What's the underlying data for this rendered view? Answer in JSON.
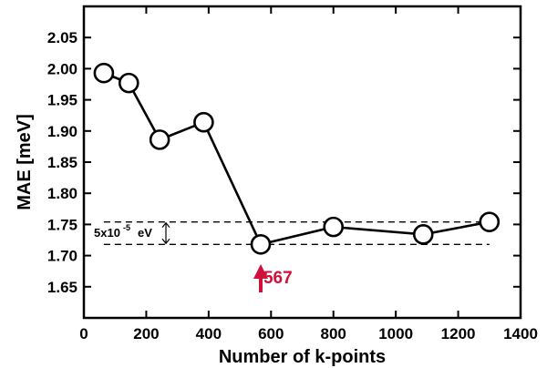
{
  "chart_data": {
    "type": "line",
    "xlabel": "Number of k-points",
    "ylabel": "MAE [meV]",
    "xlim": [
      0,
      1400
    ],
    "ylim": [
      1.6,
      2.1
    ],
    "xticks": [
      0,
      200,
      400,
      600,
      800,
      1000,
      1200,
      1400
    ],
    "yticks": [
      1.65,
      1.7,
      1.75,
      1.8,
      1.85,
      1.9,
      1.95,
      2.0,
      2.05
    ],
    "xtick_labels": [
      "0",
      "200",
      "400",
      "600",
      "800",
      "1000",
      "1200",
      "1400"
    ],
    "ytick_labels": [
      "1.65",
      "1.70",
      "1.75",
      "1.80",
      "1.85",
      "1.90",
      "1.95",
      "2.00",
      "2.05"
    ],
    "grid": false,
    "series": [
      {
        "marker": "open-circle",
        "color": "#000000",
        "x": [
          64,
          144,
          243,
          384,
          567,
          800,
          1088,
          1300
        ],
        "y": [
          1.993,
          1.977,
          1.886,
          1.914,
          1.718,
          1.746,
          1.734,
          1.754
        ]
      }
    ],
    "reference_lines": {
      "style": "dashed",
      "y": [
        1.754,
        1.718
      ],
      "x_range": [
        64,
        1300
      ]
    },
    "annotations": {
      "band": {
        "base": "5x10",
        "exponent": "-5",
        "unit": "eV"
      },
      "highlight": {
        "x": 567,
        "label": "567",
        "color": "#d0103a"
      }
    }
  }
}
